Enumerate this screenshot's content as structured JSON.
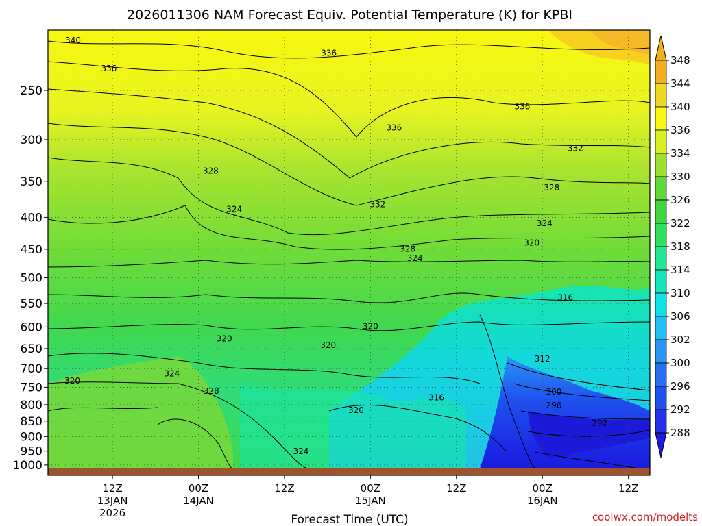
{
  "chart_data": {
    "type": "heatmap",
    "title": "2026011306 NAM Forecast Equiv. Potential Temperature (K) for KPBI",
    "xlabel": "Forecast Time (UTC)",
    "ylabel": "",
    "credit": "coolwx.com/modelts",
    "y_axis": {
      "scale": "log",
      "inverted": true,
      "ylim": [
        1013,
        200
      ],
      "ticks": [
        250,
        300,
        350,
        400,
        450,
        500,
        550,
        600,
        650,
        700,
        750,
        800,
        850,
        900,
        950,
        1000
      ]
    },
    "x_axis": {
      "hours_range": [
        -3,
        81
      ],
      "ticks": [
        {
          "hour": 6,
          "lines": [
            "12Z",
            "13JAN",
            "2026"
          ]
        },
        {
          "hour": 18,
          "lines": [
            "00Z",
            "14JAN"
          ]
        },
        {
          "hour": 30,
          "lines": [
            "12Z"
          ]
        },
        {
          "hour": 42,
          "lines": [
            "00Z",
            "15JAN"
          ]
        },
        {
          "hour": 54,
          "lines": [
            "12Z"
          ]
        },
        {
          "hour": 66,
          "lines": [
            "00Z",
            "16JAN"
          ]
        },
        {
          "hour": 78,
          "lines": [
            "12Z"
          ]
        }
      ]
    },
    "colorbar": {
      "levels": [
        288,
        292,
        296,
        300,
        302,
        306,
        310,
        314,
        318,
        322,
        326,
        330,
        334,
        336,
        340,
        344,
        348
      ],
      "colors": [
        "#1a1ae0",
        "#2630e8",
        "#1e50f0",
        "#2870f0",
        "#2a95f5",
        "#20c0f5",
        "#10e0e8",
        "#10e6b8",
        "#20e890",
        "#30e060",
        "#40d840",
        "#60d838",
        "#a0e030",
        "#d8f020",
        "#f8f810",
        "#f0d820",
        "#f0b020"
      ],
      "extend": "both"
    },
    "series": [
      {
        "x": [
          -3,
          0,
          6,
          12,
          18,
          24,
          30,
          36,
          42,
          48,
          54,
          60,
          66,
          72,
          78,
          81
        ],
        "y": [
          1000,
          1000,
          1000,
          1000,
          1000,
          1000,
          1000,
          1000,
          1000,
          1000,
          1000,
          1000,
          1000,
          1000,
          1000,
          1000
        ]
      }
    ],
    "contour_labels": [
      {
        "text": "340",
        "hour": 0.5,
        "p": 210
      },
      {
        "text": "336",
        "hour": 36.2,
        "p": 220
      },
      {
        "text": "336",
        "hour": 5.5,
        "p": 233
      },
      {
        "text": "336",
        "hour": 63.2,
        "p": 268
      },
      {
        "text": "336",
        "hour": 45.3,
        "p": 290
      },
      {
        "text": "332",
        "hour": 70.6,
        "p": 313
      },
      {
        "text": "328",
        "hour": 19.7,
        "p": 340
      },
      {
        "text": "328",
        "hour": 67.3,
        "p": 362
      },
      {
        "text": "332",
        "hour": 43.0,
        "p": 385
      },
      {
        "text": "324",
        "hour": 23.0,
        "p": 392
      },
      {
        "text": "324",
        "hour": 66.3,
        "p": 413
      },
      {
        "text": "320",
        "hour": 64.5,
        "p": 444
      },
      {
        "text": "328",
        "hour": 47.2,
        "p": 454
      },
      {
        "text": "324",
        "hour": 48.2,
        "p": 470
      },
      {
        "text": "316",
        "hour": 69.2,
        "p": 544
      },
      {
        "text": "320",
        "hour": 42.0,
        "p": 605
      },
      {
        "text": "320",
        "hour": 21.6,
        "p": 633
      },
      {
        "text": "320",
        "hour": 36.1,
        "p": 648
      },
      {
        "text": "312",
        "hour": 66.0,
        "p": 682
      },
      {
        "text": "324",
        "hour": 14.3,
        "p": 720
      },
      {
        "text": "320",
        "hour": 0.4,
        "p": 740
      },
      {
        "text": "300",
        "hour": 67.6,
        "p": 770
      },
      {
        "text": "328",
        "hour": 19.8,
        "p": 768
      },
      {
        "text": "316",
        "hour": 51.2,
        "p": 787
      },
      {
        "text": "296",
        "hour": 67.6,
        "p": 810
      },
      {
        "text": "320",
        "hour": 40.0,
        "p": 825
      },
      {
        "text": "292",
        "hour": 74.0,
        "p": 865
      },
      {
        "text": "324",
        "hour": 32.3,
        "p": 960
      }
    ]
  }
}
